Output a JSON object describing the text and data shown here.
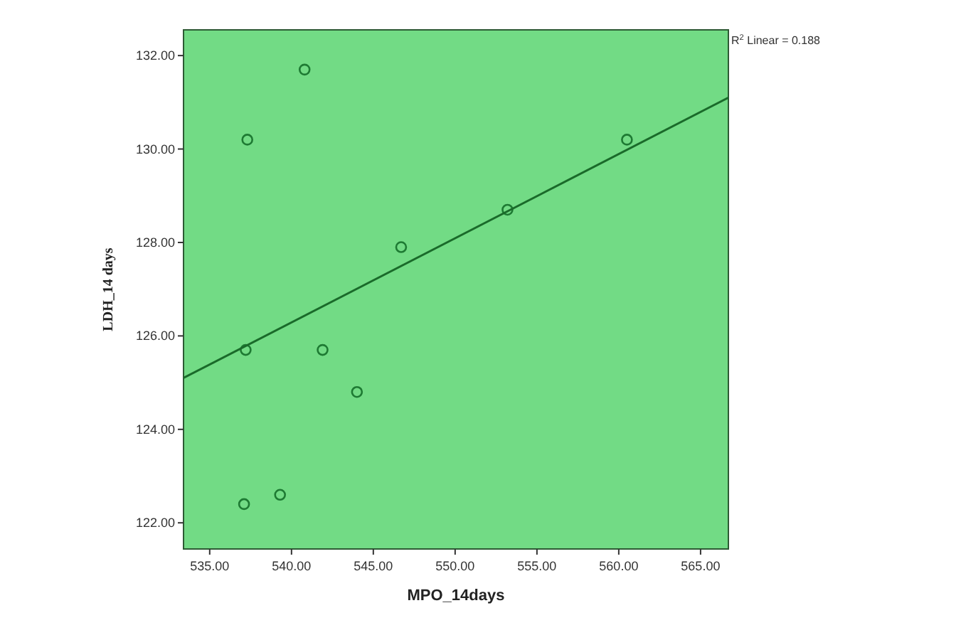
{
  "chart_data": {
    "type": "scatter",
    "xlabel": "MPO_14days",
    "ylabel": "LDH_14 days",
    "annotations": [
      "R$^{2}$ Linear = 0.188"
    ],
    "xlim": [
      533.4,
      566.7
    ],
    "ylim": [
      121.44,
      132.55
    ],
    "xticks": [
      {
        "value": 535,
        "label": "535.00"
      },
      {
        "value": 540,
        "label": "540.00"
      },
      {
        "value": 545,
        "label": "545.00"
      },
      {
        "value": 550,
        "label": "550.00"
      },
      {
        "value": 555,
        "label": "555.00"
      },
      {
        "value": 560,
        "label": "560.00"
      },
      {
        "value": 565,
        "label": "565.00"
      }
    ],
    "yticks": [
      {
        "value": 122,
        "label": "122.00"
      },
      {
        "value": 124,
        "label": "124.00"
      },
      {
        "value": 126,
        "label": "126.00"
      },
      {
        "value": 128,
        "label": "128.00"
      },
      {
        "value": 130,
        "label": "130.00"
      },
      {
        "value": 132,
        "label": "132.00"
      }
    ],
    "marker": "circle",
    "grid": false,
    "series": [
      {
        "color": "#1e7a33",
        "x": [
          540.8,
          537.3,
          546.7,
          553.2,
          537.2,
          541.9,
          544.0,
          537.1,
          539.3,
          560.5
        ],
        "values": [
          131.7,
          130.2,
          127.9,
          128.7,
          125.7,
          125.7,
          124.8,
          122.4,
          122.6,
          130.2
        ]
      },
      {
        "type": "line",
        "color": "#1a6a2a",
        "x": [
          533.4,
          566.7
        ],
        "values": [
          125.1,
          131.1
        ],
        "marker": "none",
        "line_style": "solid"
      }
    ]
  }
}
